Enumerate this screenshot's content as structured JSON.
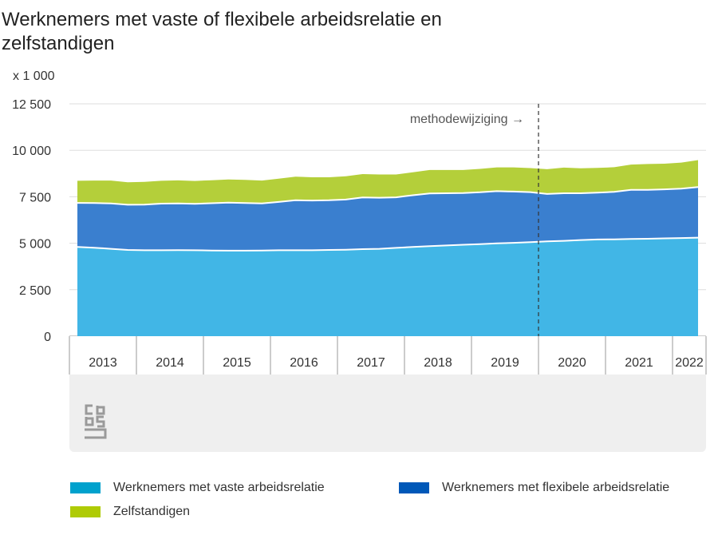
{
  "title": {
    "line1": "Werknemers met vaste of flexibele arbeidsrelatie en",
    "line2": "zelfstandigen"
  },
  "unit_label": "x 1 000",
  "annotation": "methodewijziging →",
  "colors": {
    "vast": "#41b6e6",
    "flex": "#3a7fcf",
    "zzp": "#b4cf3a",
    "legend_vast": "#00a1cd",
    "legend_flex": "#0058b8",
    "legend_zzp": "#afcb05",
    "grid": "#dddddd",
    "axis_band": "#efefef"
  },
  "legend": {
    "vast": "Werknemers met vaste arbeidsrelatie",
    "flex": "Werknemers met flexibele arbeidsrelatie",
    "zzp": "Zelfstandigen"
  },
  "chart_data": {
    "type": "area",
    "stacked": true,
    "title": "Werknemers met vaste of flexibele arbeidsrelatie en zelfstandigen",
    "ylabel": "x 1 000",
    "ylim": [
      0,
      12500
    ],
    "yticks": [
      0,
      2500,
      5000,
      7500,
      10000,
      12500
    ],
    "ytick_labels": [
      "0",
      "2 500",
      "5 000",
      "7 500",
      "10 000",
      "12 500"
    ],
    "year_labels": [
      "2013",
      "2014",
      "2015",
      "2016",
      "2017",
      "2018",
      "2019",
      "2020",
      "2021",
      "2022"
    ],
    "x": [
      "2013 Q1",
      "2013 Q2",
      "2013 Q3",
      "2013 Q4",
      "2014 Q1",
      "2014 Q2",
      "2014 Q3",
      "2014 Q4",
      "2015 Q1",
      "2015 Q2",
      "2015 Q3",
      "2015 Q4",
      "2016 Q1",
      "2016 Q2",
      "2016 Q3",
      "2016 Q4",
      "2017 Q1",
      "2017 Q2",
      "2017 Q3",
      "2017 Q4",
      "2018 Q1",
      "2018 Q2",
      "2018 Q3",
      "2018 Q4",
      "2019 Q1",
      "2019 Q2",
      "2019 Q3",
      "2019 Q4",
      "2020 Q1",
      "2020 Q2",
      "2020 Q3",
      "2020 Q4",
      "2021 Q1",
      "2021 Q2",
      "2021 Q3",
      "2021 Q4",
      "2022 Q1",
      "2022 Q2"
    ],
    "method_change_after": "2019 Q4",
    "series": [
      {
        "name": "Werknemers met vaste arbeidsrelatie",
        "values": [
          4800,
          4760,
          4700,
          4640,
          4620,
          4620,
          4630,
          4620,
          4610,
          4600,
          4600,
          4610,
          4620,
          4620,
          4620,
          4640,
          4650,
          4680,
          4700,
          4750,
          4800,
          4840,
          4880,
          4920,
          4950,
          4990,
          5020,
          5060,
          5100,
          5130,
          5170,
          5200,
          5210,
          5230,
          5240,
          5260,
          5280,
          5300
        ]
      },
      {
        "name": "Werknemers met flexibele arbeidsrelatie",
        "values": [
          2370,
          2400,
          2440,
          2430,
          2460,
          2510,
          2510,
          2500,
          2540,
          2580,
          2560,
          2530,
          2600,
          2690,
          2680,
          2670,
          2700,
          2780,
          2750,
          2720,
          2780,
          2840,
          2810,
          2780,
          2790,
          2810,
          2760,
          2690,
          2550,
          2560,
          2520,
          2520,
          2550,
          2640,
          2630,
          2640,
          2660,
          2720
        ]
      },
      {
        "name": "Zelfstandigen",
        "values": [
          1190,
          1210,
          1230,
          1210,
          1220,
          1230,
          1240,
          1230,
          1240,
          1250,
          1250,
          1230,
          1250,
          1270,
          1250,
          1240,
          1250,
          1260,
          1250,
          1230,
          1240,
          1260,
          1250,
          1240,
          1260,
          1280,
          1300,
          1290,
          1330,
          1380,
          1340,
          1330,
          1330,
          1360,
          1390,
          1380,
          1400,
          1450
        ]
      }
    ]
  }
}
